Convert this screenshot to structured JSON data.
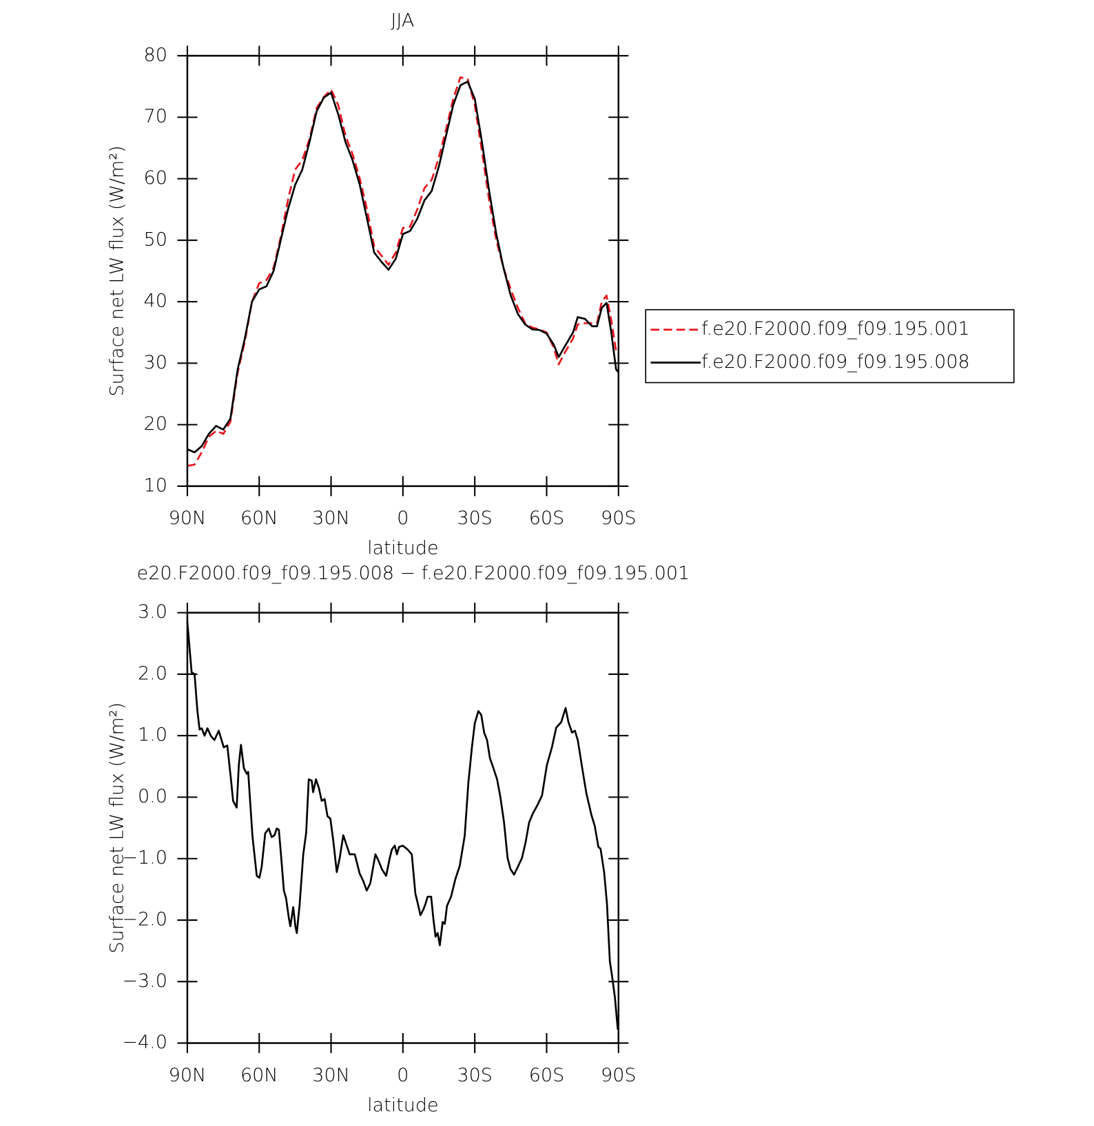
{
  "chart_data": [
    {
      "type": "line",
      "title": "JJA",
      "x_label": "latitude",
      "y_label": "Surface net LW flux (W/m²)",
      "x": [
        90,
        87,
        84,
        81,
        78,
        75,
        72,
        69,
        66,
        63,
        60,
        57,
        54,
        51,
        48,
        45,
        42,
        39,
        36,
        33,
        30,
        27,
        24,
        21,
        18,
        15,
        12,
        9,
        6,
        3,
        0,
        -3,
        -6,
        -9,
        -12,
        -15,
        -18,
        -21,
        -24,
        -27,
        -30,
        -33,
        -36,
        -39,
        -42,
        -45,
        -48,
        -51,
        -54,
        -57,
        -60,
        -63,
        -65,
        -68,
        -71,
        -73,
        -76,
        -79,
        -81,
        -83,
        -85,
        -87,
        -89,
        -90
      ],
      "series": [
        {
          "name": "f.e20.F2000.f09_f09.195.001",
          "color": "#e8141c",
          "line_style": "dashed",
          "values": [
            13.3,
            13.5,
            15.5,
            18,
            19,
            18.5,
            20.5,
            28.5,
            33.5,
            40,
            43,
            43.5,
            45.5,
            50.5,
            56.5,
            61.5,
            63,
            66.5,
            71.5,
            73.3,
            74.5,
            72,
            67,
            64,
            60,
            55,
            49,
            47.5,
            46,
            48,
            52,
            52.2,
            55,
            58.5,
            59.8,
            63.5,
            68,
            73,
            76.5,
            76.2,
            72,
            64.5,
            56.5,
            50,
            45.5,
            42,
            39,
            36.5,
            35.8,
            35.5,
            35,
            32.5,
            29.8,
            32,
            34,
            36.3,
            36.5,
            36.5,
            36.5,
            40,
            41,
            37,
            32,
            31.5
          ]
        },
        {
          "name": "f.e20.F2000.f09_f09.195.008",
          "color": "#000000",
          "line_style": "solid",
          "values": [
            16,
            15.5,
            16.5,
            18.5,
            19.8,
            19.2,
            21,
            29,
            34,
            40,
            42,
            42.5,
            45,
            50,
            55,
            59,
            61.5,
            66,
            71,
            73.2,
            74,
            70.5,
            66,
            63,
            59,
            53.5,
            48,
            46.5,
            45.2,
            47,
            51,
            51.5,
            53.5,
            56.5,
            58,
            62,
            67,
            72,
            75.2,
            75.8,
            73,
            66,
            58,
            51,
            45.5,
            41,
            38,
            36.3,
            35.5,
            35.4,
            34.8,
            33,
            31,
            33,
            35,
            37.5,
            37.2,
            36,
            36,
            39,
            39.8,
            35,
            29,
            28.5
          ]
        }
      ],
      "xlim": [
        90,
        -90
      ],
      "xticks": [
        {
          "value": 90,
          "label": "90N"
        },
        {
          "value": 60,
          "label": "60N"
        },
        {
          "value": 30,
          "label": "30N"
        },
        0,
        {
          "value": -30,
          "label": "30S"
        },
        {
          "value": -60,
          "label": "60S"
        },
        {
          "value": -90,
          "label": "90S"
        }
      ],
      "ylim": [
        10,
        80
      ],
      "yticks": [
        10,
        20,
        30,
        40,
        50,
        60,
        70,
        80
      ],
      "legend": "right"
    },
    {
      "type": "line",
      "title": "e20.F2000.f09_f09.195.008 − f.e20.F2000.f09_f09.195.001",
      "x_label": "latitude",
      "y_label": "Surface net LW flux (W/m²)",
      "x": [
        90,
        88.2,
        87,
        85.8,
        84.9,
        84,
        82.8,
        81.6,
        80.1,
        78.7,
        76.9,
        74.8,
        73.3,
        71.8,
        70.9,
        69.4,
        68.5,
        67.6,
        66.4,
        65.2,
        64.6,
        62.8,
        61,
        59.9,
        59,
        57.5,
        56,
        54.8,
        53.6,
        52.7,
        51.8,
        50.9,
        49.7,
        48.8,
        47.6,
        47,
        45.8,
        44.9,
        44.3,
        43.1,
        41.6,
        40.4,
        39.3,
        38.1,
        37.5,
        36.3,
        35.1,
        33.9,
        32.7,
        31.5,
        30.3,
        29.1,
        27.6,
        26.4,
        24.9,
        23.7,
        22.2,
        20.1,
        18.1,
        16.6,
        15.1,
        13.6,
        11.5,
        10,
        8.8,
        7,
        5.5,
        4.6,
        3.4,
        2.5,
        1.6,
        0.1,
        -1.9,
        -3.7,
        -5.2,
        -6.1,
        -7.3,
        -8.5,
        -9.4,
        -10.3,
        -11.8,
        -12.7,
        -13.6,
        -14.5,
        -15.4,
        -16.6,
        -17.5,
        -18.4,
        -20.1,
        -21.9,
        -23.7,
        -25.8,
        -27.3,
        -28.8,
        -30,
        -31.5,
        -32.7,
        -33.9,
        -35.1,
        -36.3,
        -37.8,
        -39.3,
        -40.7,
        -42.2,
        -43.7,
        -44.9,
        -46.4,
        -47.9,
        -49.7,
        -51.2,
        -52.7,
        -54.2,
        -56.3,
        -58.1,
        -60.1,
        -62.2,
        -64,
        -66.1,
        -67.9,
        -69.1,
        -70.6,
        -71.8,
        -73,
        -75.1,
        -76.6,
        -78.7,
        -80.1,
        -81.6,
        -82.5,
        -84,
        -85.2,
        -86.4,
        -87.3,
        -88.5,
        -89.7
      ],
      "series": [
        {
          "color": "#000000",
          "line_style": "solid",
          "values": [
            2.85,
            2.03,
            2,
            1.4,
            1.1,
            1.12,
            1,
            1.12,
            0.99,
            0.93,
            1.08,
            0.81,
            0.84,
            0.29,
            -0.06,
            -0.17,
            0.52,
            0.85,
            0.47,
            0.38,
            0.41,
            -0.64,
            -1.28,
            -1.31,
            -1.14,
            -0.59,
            -0.51,
            -0.65,
            -0.62,
            -0.51,
            -0.53,
            -0.94,
            -1.52,
            -1.64,
            -1.97,
            -2.1,
            -1.79,
            -2.1,
            -2.21,
            -1.74,
            -0.93,
            -0.58,
            0.29,
            0.27,
            0.08,
            0.29,
            0.15,
            -0.06,
            -0.03,
            -0.31,
            -0.35,
            -0.7,
            -1.22,
            -0.99,
            -0.62,
            -0.76,
            -0.93,
            -0.93,
            -1.24,
            -1.36,
            -1.52,
            -1.4,
            -0.93,
            -1.05,
            -1.17,
            -1.28,
            -0.99,
            -0.85,
            -0.79,
            -0.93,
            -0.81,
            -0.79,
            -0.85,
            -0.93,
            -1.57,
            -1.71,
            -1.92,
            -1.83,
            -1.74,
            -1.62,
            -1.62,
            -1.97,
            -2.27,
            -2.21,
            -2.41,
            -2.03,
            -2.06,
            -1.77,
            -1.62,
            -1.33,
            -1.12,
            -0.63,
            0.23,
            0.81,
            1.2,
            1.4,
            1.34,
            1.05,
            0.93,
            0.64,
            0.47,
            0.29,
            0,
            -0.41,
            -0.99,
            -1.17,
            -1.26,
            -1.14,
            -0.99,
            -0.74,
            -0.41,
            -0.27,
            -0.12,
            0.03,
            0.52,
            0.81,
            1.13,
            1.22,
            1.45,
            1.22,
            1.05,
            1.08,
            0.93,
            0.41,
            0.06,
            -0.29,
            -0.47,
            -0.81,
            -0.84,
            -1.22,
            -1.74,
            -2.67,
            -2.91,
            -3.26,
            -3.78
          ]
        }
      ],
      "xlim": [
        90,
        -90
      ],
      "xticks": [
        {
          "value": 90,
          "label": "90N"
        },
        {
          "value": 60,
          "label": "60N"
        },
        {
          "value": 30,
          "label": "30N"
        },
        0,
        {
          "value": -30,
          "label": "30S"
        },
        {
          "value": -60,
          "label": "60S"
        },
        {
          "value": -90,
          "label": "90S"
        }
      ],
      "ylim": [
        -4,
        3
      ],
      "yticks": [
        {
          "value": -4,
          "label": "−4.0"
        },
        {
          "value": -3,
          "label": "−3.0"
        },
        {
          "value": -2,
          "label": "−2.0"
        },
        {
          "value": -1,
          "label": "−1.0"
        },
        {
          "value": 0,
          "label": "0.0"
        },
        {
          "value": 1,
          "label": "1.0"
        },
        {
          "value": 2,
          "label": "2.0"
        },
        {
          "value": 3,
          "label": "3.0"
        }
      ]
    }
  ]
}
